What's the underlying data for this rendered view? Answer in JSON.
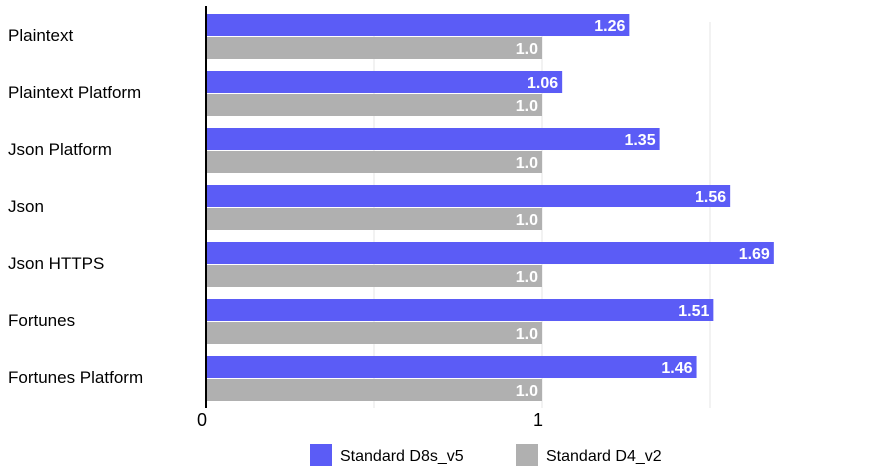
{
  "chart_data": {
    "type": "bar",
    "orientation": "horizontal",
    "categories": [
      "Plaintext",
      "Plaintext Platform",
      "Json Platform",
      "Json",
      "Json HTTPS",
      "Fortunes",
      "Fortunes Platform"
    ],
    "series": [
      {
        "name": "Standard D8s_v5",
        "color": "#5b5cf6",
        "values": [
          1.26,
          1.06,
          1.35,
          1.56,
          1.69,
          1.51,
          1.46
        ],
        "labels": [
          "1.26",
          "1.06",
          "1.35",
          "1.56",
          "1.69",
          "1.51",
          "1.46"
        ]
      },
      {
        "name": "Standard D4_v2",
        "color": "#b0b0b0",
        "values": [
          1.0,
          1.0,
          1.0,
          1.0,
          1.0,
          1.0,
          1.0
        ],
        "labels": [
          "1.0",
          "1.0",
          "1.0",
          "1.0",
          "1.0",
          "1.0",
          "1.0"
        ]
      }
    ],
    "x_ticks": [
      {
        "value": 0,
        "label": "0"
      },
      {
        "value": 1,
        "label": "1"
      }
    ],
    "xlim": [
      0,
      2
    ],
    "grid": "vertical",
    "legend_position": "bottom",
    "title": "",
    "xlabel": "",
    "ylabel": ""
  }
}
